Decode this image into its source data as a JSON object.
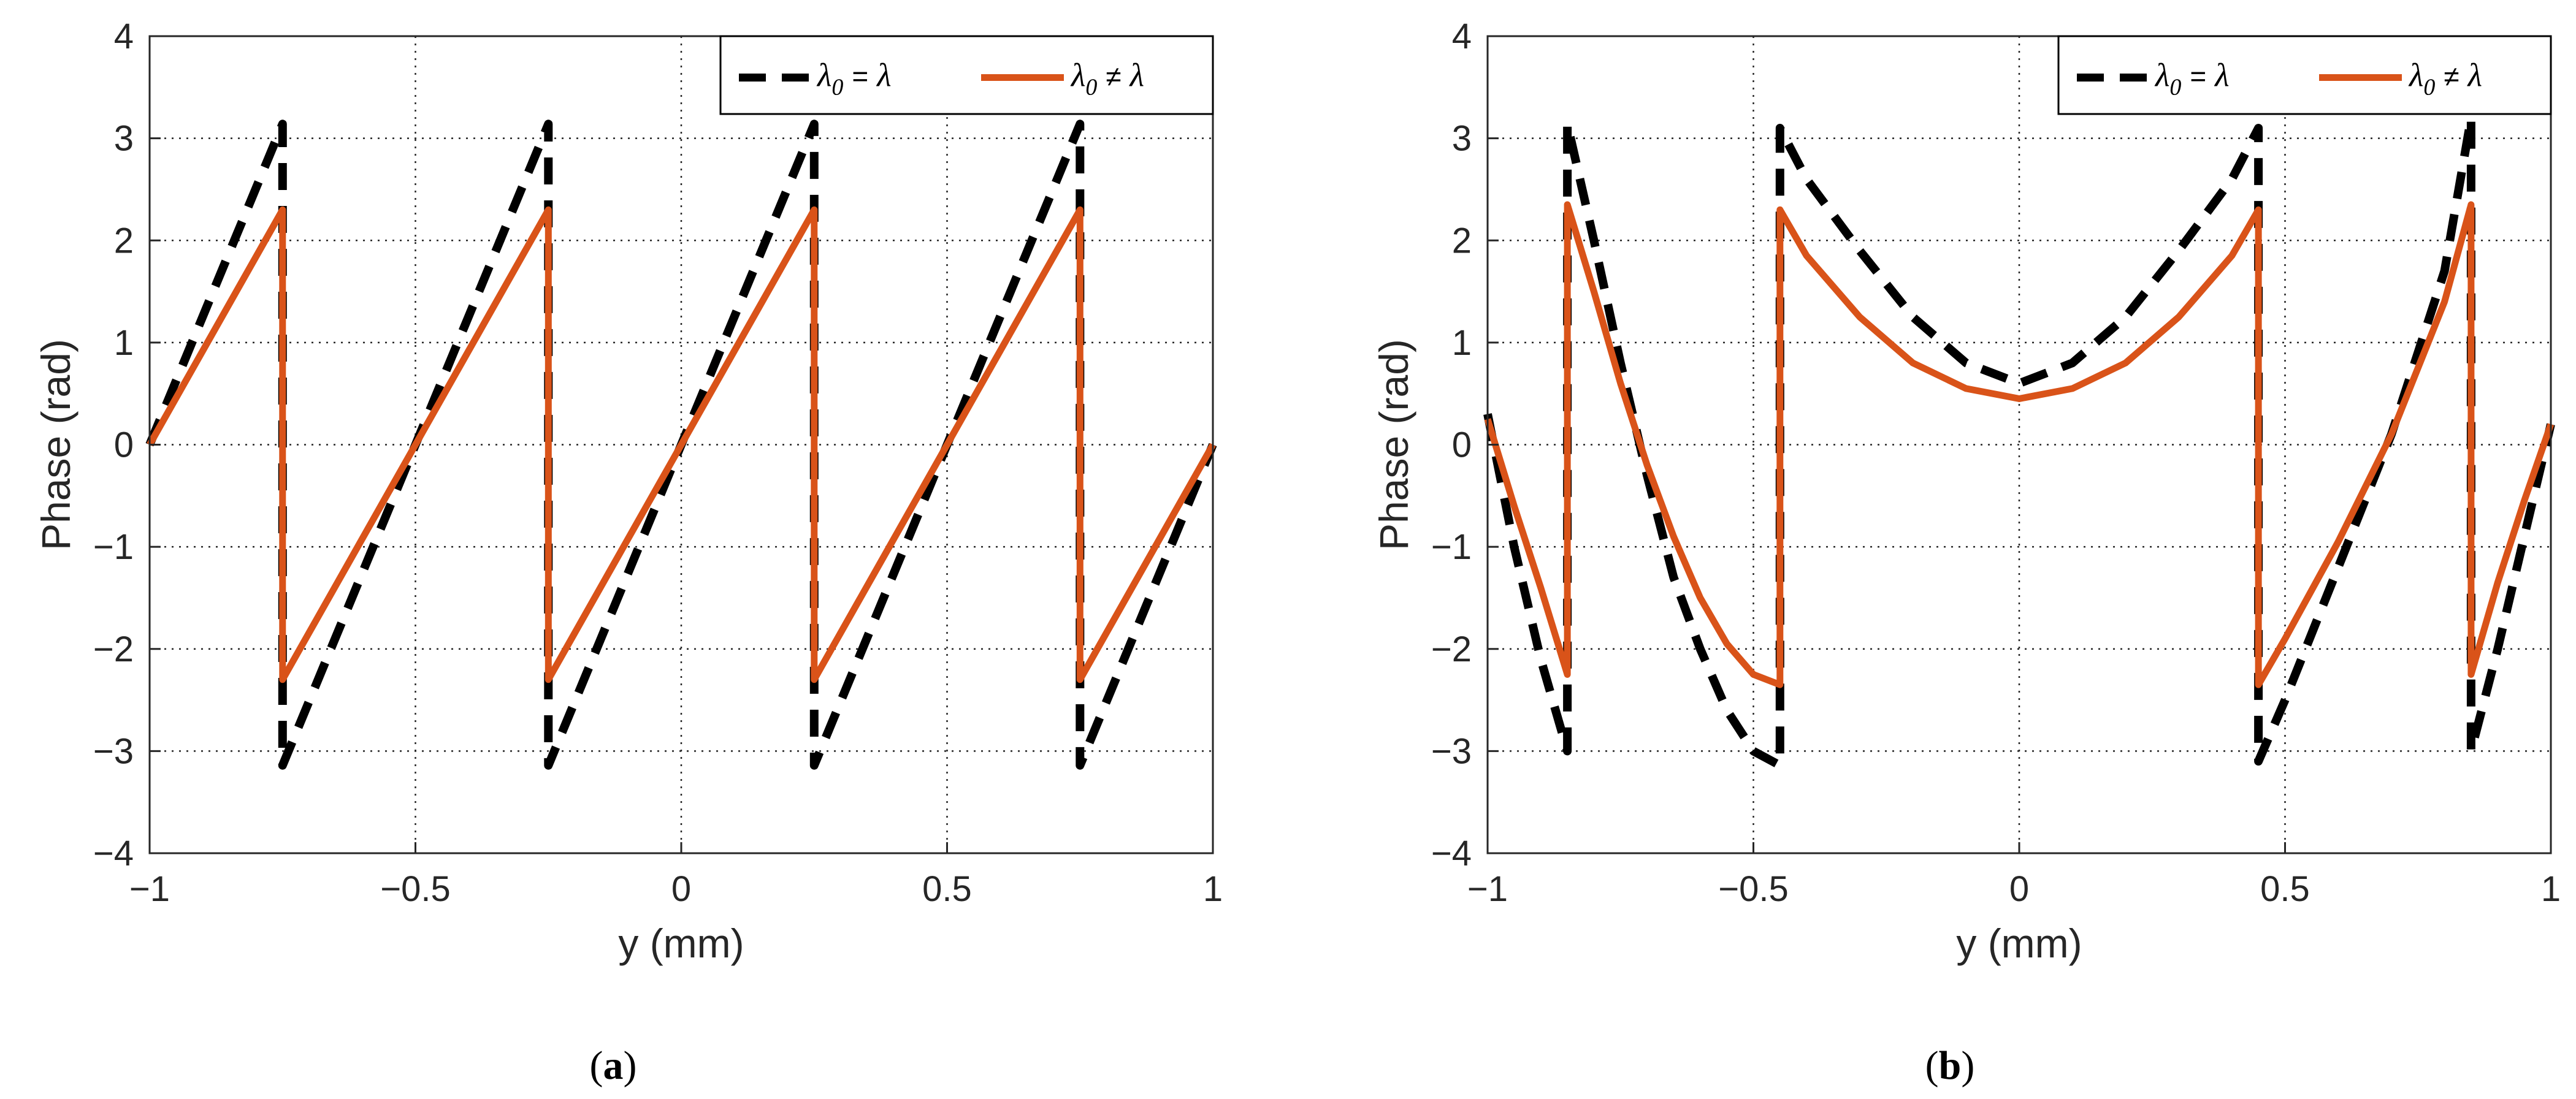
{
  "colors": {
    "ideal": "#000000",
    "nonideal": "#D95319",
    "grid": "#262626",
    "axis": "#262626"
  },
  "chart_data": [
    {
      "type": "line",
      "caption": "a",
      "xlabel": "y (mm)",
      "ylabel": "Phase (rad)",
      "xlim": [
        -1,
        1
      ],
      "ylim": [
        -4,
        4
      ],
      "xticks": [
        -1,
        -0.5,
        0,
        0.5,
        1
      ],
      "xtick_labels": [
        "−1",
        "−0.5",
        "0",
        "0.5",
        "1"
      ],
      "yticks": [
        -4,
        -3,
        -2,
        -1,
        0,
        1,
        2,
        3,
        4
      ],
      "ytick_labels": [
        "−4",
        "−3",
        "−2",
        "−1",
        "0",
        "1",
        "2",
        "3",
        "4"
      ],
      "grid": true,
      "legend_position": "top-right",
      "legend": {
        "ideal": {
          "lambda": "λ",
          "sub": "0",
          "op": "=",
          "rhs": "λ"
        },
        "nonideal": {
          "lambda": "λ",
          "sub": "0",
          "op": "≠",
          "rhs": "λ"
        }
      },
      "series": [
        {
          "name": "λ0 = λ",
          "style": "dashed",
          "x": [
            -1,
            -0.75,
            -0.75,
            -0.25,
            -0.25,
            0.25,
            0.25,
            0.75,
            0.75,
            1
          ],
          "y": [
            0,
            3.14,
            -3.14,
            3.14,
            -3.14,
            3.14,
            -3.14,
            3.14,
            -3.14,
            0
          ]
        },
        {
          "name": "λ0 ≠ λ",
          "style": "solid",
          "x": [
            -1,
            -0.75,
            -0.75,
            -0.25,
            -0.25,
            0.25,
            0.25,
            0.75,
            0.75,
            1
          ],
          "y": [
            0,
            2.3,
            -2.3,
            2.3,
            -2.3,
            2.3,
            -2.3,
            2.3,
            -2.3,
            0
          ]
        }
      ]
    },
    {
      "type": "line",
      "caption": "b",
      "xlabel": "y (mm)",
      "ylabel": "Phase (rad)",
      "xlim": [
        -1,
        1
      ],
      "ylim": [
        -4,
        4
      ],
      "xticks": [
        -1,
        -0.5,
        0,
        0.5,
        1
      ],
      "xtick_labels": [
        "−1",
        "−0.5",
        "0",
        "0.5",
        "1"
      ],
      "yticks": [
        -4,
        -3,
        -2,
        -1,
        0,
        1,
        2,
        3,
        4
      ],
      "ytick_labels": [
        "−4",
        "−3",
        "−2",
        "−1",
        "0",
        "1",
        "2",
        "3",
        "4"
      ],
      "grid": true,
      "legend_position": "top-right",
      "legend": {
        "ideal": {
          "lambda": "λ",
          "sub": "0",
          "op": "=",
          "rhs": "λ"
        },
        "nonideal": {
          "lambda": "λ",
          "sub": "0",
          "op": "≠",
          "rhs": "λ"
        }
      },
      "series": [
        {
          "name": "λ0 = λ",
          "style": "dashed",
          "x": [
            -1,
            -0.95,
            -0.9,
            -0.85,
            -0.85,
            -0.8,
            -0.75,
            -0.7,
            -0.65,
            -0.6,
            -0.55,
            -0.5,
            -0.45,
            -0.45,
            -0.4,
            -0.3,
            -0.2,
            -0.1,
            0,
            0.1,
            0.2,
            0.3,
            0.4,
            0.45,
            0.45,
            0.5,
            0.6,
            0.7,
            0.8,
            0.85,
            0.85,
            0.9,
            0.95,
            1
          ],
          "y": [
            0.3,
            -1.0,
            -2.1,
            -3.0,
            3.14,
            2.0,
            0.8,
            -0.3,
            -1.3,
            -2.0,
            -2.6,
            -3.0,
            -3.14,
            3.1,
            2.6,
            1.9,
            1.25,
            0.8,
            0.6,
            0.8,
            1.25,
            1.9,
            2.6,
            3.1,
            -3.1,
            -2.5,
            -1.2,
            0.1,
            1.7,
            3.2,
            -3.0,
            -2.0,
            -0.9,
            0.2
          ]
        },
        {
          "name": "λ0 ≠ λ",
          "style": "solid",
          "x": [
            -1,
            -0.95,
            -0.9,
            -0.85,
            -0.85,
            -0.8,
            -0.75,
            -0.7,
            -0.65,
            -0.6,
            -0.55,
            -0.5,
            -0.45,
            -0.45,
            -0.4,
            -0.3,
            -0.2,
            -0.1,
            0,
            0.1,
            0.2,
            0.3,
            0.4,
            0.45,
            0.45,
            0.5,
            0.6,
            0.7,
            0.8,
            0.85,
            0.85,
            0.9,
            0.95,
            1
          ],
          "y": [
            0.25,
            -0.6,
            -1.4,
            -2.25,
            2.35,
            1.5,
            0.6,
            -0.2,
            -0.9,
            -1.5,
            -1.95,
            -2.25,
            -2.35,
            2.3,
            1.85,
            1.25,
            0.8,
            0.55,
            0.45,
            0.55,
            0.8,
            1.25,
            1.85,
            2.3,
            -2.35,
            -1.9,
            -0.95,
            0.1,
            1.4,
            2.35,
            -2.25,
            -1.35,
            -0.55,
            0.2
          ]
        }
      ]
    }
  ]
}
